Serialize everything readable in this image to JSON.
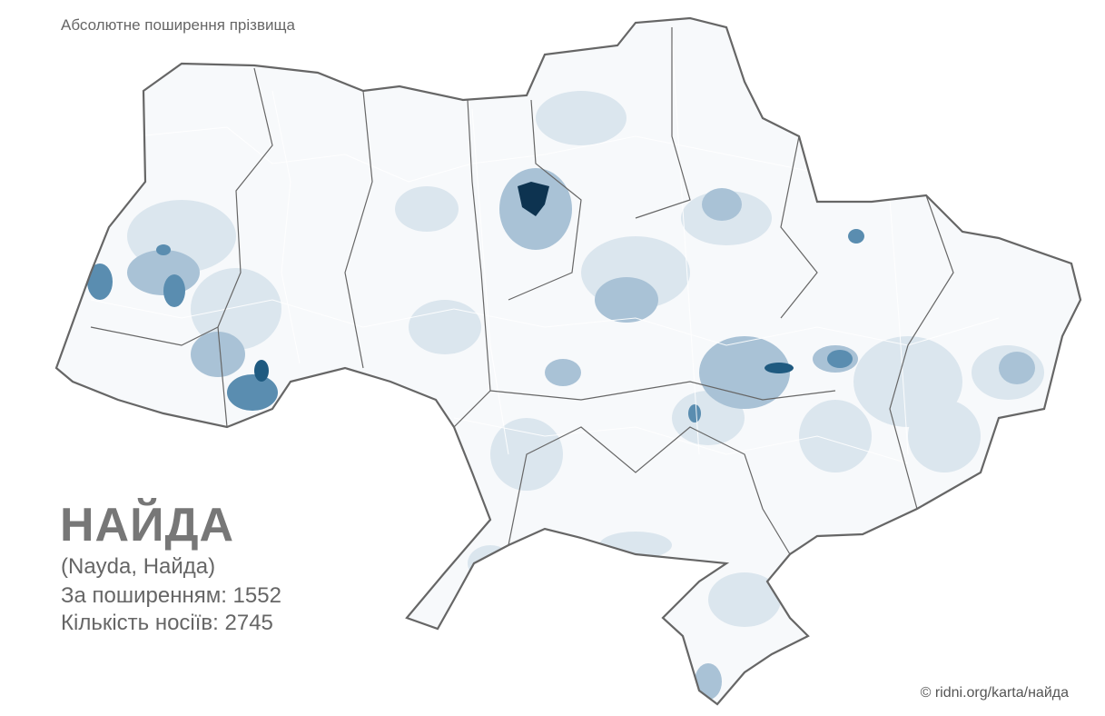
{
  "header": {
    "title": "Абсолютне поширення прізвища"
  },
  "surname": {
    "name": "НАЙДА",
    "variants": "(Nayda, Найда)",
    "rank_line": "За поширенням: 1552",
    "count_line": "Кількість носіїв:  2745"
  },
  "footer": {
    "credit": "© ridni.org/karta/найда"
  }
}
